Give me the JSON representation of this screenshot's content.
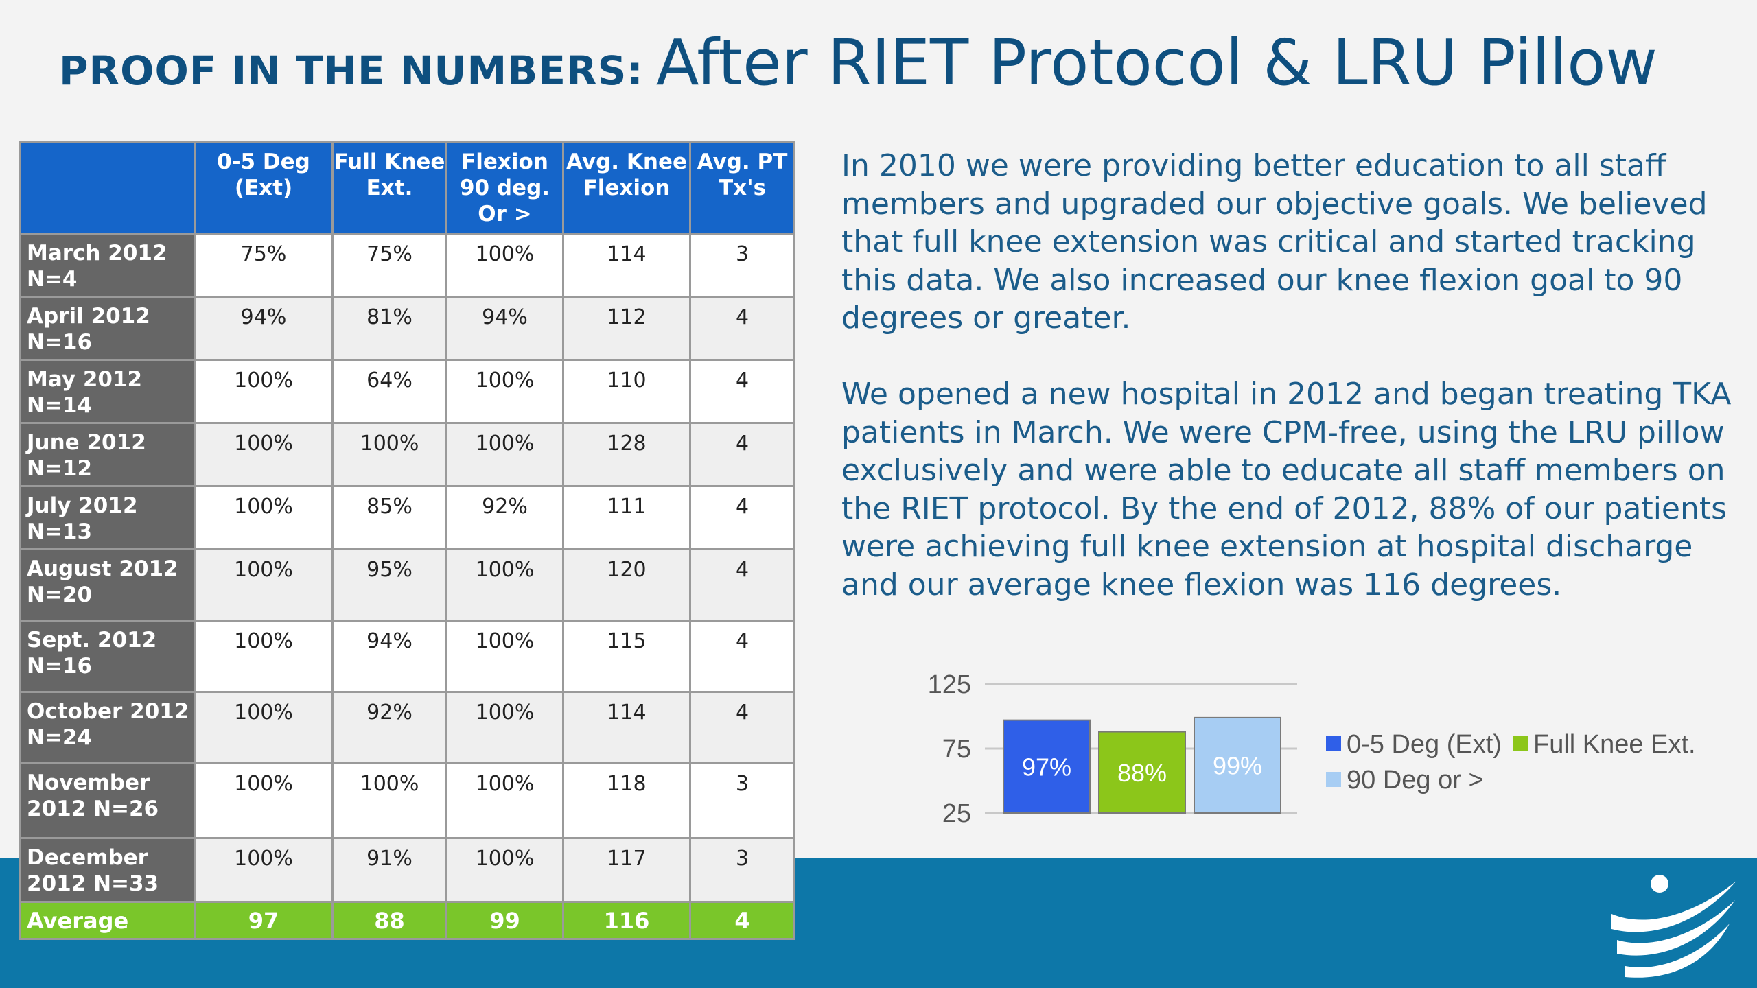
{
  "title": {
    "bold": "PROOF IN THE NUMBERS:",
    "light": "After RIET Protocol & LRU Pillow"
  },
  "table": {
    "headers": [
      "",
      "0-5 Deg (Ext)",
      "Full Knee Ext.",
      "Flexion 90 deg. Or >",
      "Avg. Knee Flexion",
      "Avg. PT Tx's"
    ],
    "rows": [
      {
        "label": "March 2012 N=4",
        "cells": [
          "75%",
          "75%",
          "100%",
          "114",
          "3"
        ]
      },
      {
        "label": "April 2012 N=16",
        "cells": [
          "94%",
          "81%",
          "94%",
          "112",
          "4"
        ]
      },
      {
        "label": "May  2012 N=14",
        "cells": [
          "100%",
          "64%",
          "100%",
          "110",
          "4"
        ]
      },
      {
        "label": "June 2012 N=12",
        "cells": [
          "100%",
          "100%",
          "100%",
          "128",
          "4"
        ]
      },
      {
        "label": "July  2012 N=13",
        "cells": [
          "100%",
          "85%",
          "92%",
          "111",
          "4"
        ]
      },
      {
        "label": "August 2012 N=20",
        "cells": [
          "100%",
          "95%",
          "100%",
          "120",
          "4"
        ]
      },
      {
        "label": "Sept. 2012 N=16",
        "cells": [
          "100%",
          "94%",
          "100%",
          "115",
          "4"
        ]
      },
      {
        "label": "October 2012 N=24",
        "cells": [
          "100%",
          "92%",
          "100%",
          "114",
          "4"
        ]
      },
      {
        "label": "November 2012  N=26",
        "cells": [
          "100%",
          "100%",
          "100%",
          "118",
          "3"
        ]
      },
      {
        "label": "December 2012 N=33",
        "cells": [
          "100%",
          "91%",
          "100%",
          "117",
          "3"
        ]
      }
    ],
    "footer": {
      "label": "Average",
      "cells": [
        "97",
        "88",
        "99",
        "116",
        "4"
      ]
    }
  },
  "paragraphs": [
    "In 2010 we were providing better education to all staff members and upgraded our objective goals.  We believed that full knee extension was critical and started tracking this data.  We also increased our knee flexion goal to 90 degrees or greater.",
    "We opened a new hospital in 2012 and began treating TKA patients in March.  We were  CPM-free, using the LRU pillow exclusively and were able to educate all staff members on the RIET protocol. By the end of 2012, 88% of our patients were achieving full knee extension at hospital discharge and our average knee flexion was 116 degrees."
  ],
  "chart_data": {
    "type": "bar",
    "categories": [
      ""
    ],
    "series": [
      {
        "name": "0-5 Deg (Ext)",
        "values": [
          97
        ],
        "label": "97%",
        "color": "#2f5fe8"
      },
      {
        "name": "Full Knee Ext.",
        "values": [
          88
        ],
        "label": "88%",
        "color": "#8cc61a"
      },
      {
        "name": "90 Deg or >",
        "values": [
          99
        ],
        "label": "99%",
        "color": "#a7cdf3"
      }
    ],
    "yticks": [
      125,
      75,
      25
    ],
    "ylim": [
      25,
      125
    ],
    "grid": true,
    "legend": "right"
  },
  "colors": {
    "title": "#0e4f7f",
    "header_blue": "#1565c9",
    "row_label_gray": "#666666",
    "average_green": "#7ac62a",
    "band_blue": "#0d77a8"
  }
}
